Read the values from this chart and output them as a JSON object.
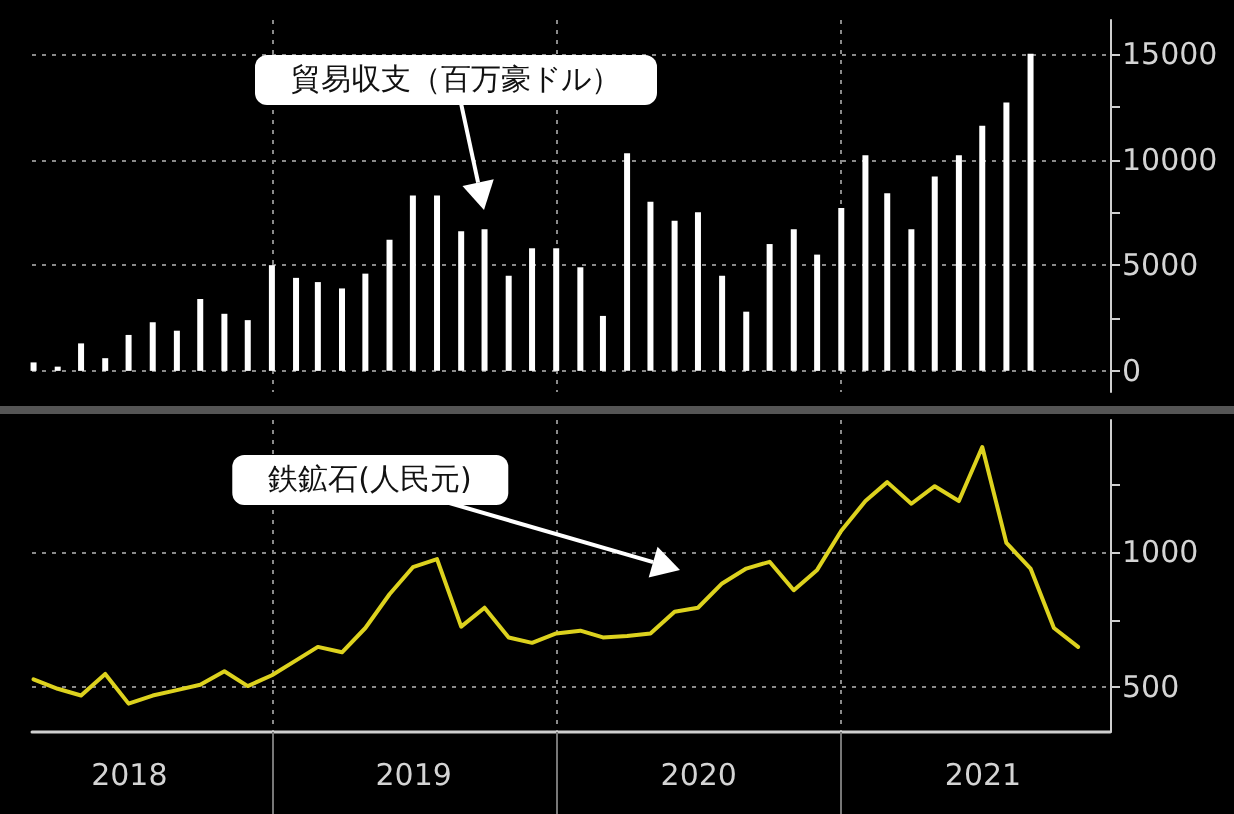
{
  "chart_data": [
    {
      "type": "bar",
      "x": [
        "2018-03",
        "2018-04",
        "2018-05",
        "2018-06",
        "2018-07",
        "2018-08",
        "2018-09",
        "2018-10",
        "2018-11",
        "2018-12",
        "2019-01",
        "2019-02",
        "2019-03",
        "2019-04",
        "2019-05",
        "2019-06",
        "2019-07",
        "2019-08",
        "2019-09",
        "2019-10",
        "2019-11",
        "2019-12",
        "2020-01",
        "2020-02",
        "2020-03",
        "2020-04",
        "2020-05",
        "2020-06",
        "2020-07",
        "2020-08",
        "2020-09",
        "2020-10",
        "2020-11",
        "2020-12",
        "2021-01",
        "2021-02",
        "2021-03",
        "2021-04",
        "2021-05",
        "2021-06",
        "2021-07",
        "2021-08",
        "2021-09"
      ],
      "values": [
        400,
        200,
        1300,
        600,
        1700,
        2300,
        1900,
        3400,
        2700,
        2400,
        5000,
        4400,
        4200,
        3900,
        4600,
        6200,
        8300,
        8300,
        6600,
        6700,
        4500,
        5800,
        5800,
        4900,
        2600,
        10300,
        8000,
        7100,
        7500,
        4500,
        2800,
        6000,
        6700,
        5500,
        7700,
        10200,
        8400,
        6700,
        9200,
        10200,
        11600,
        12700,
        15000
      ],
      "color": "#ffffff",
      "xlim": [
        "2018-02-27",
        "2021-12-12"
      ],
      "ylim": [
        -1000,
        16600
      ],
      "yticks": [
        0,
        {
          "value": 2500,
          "label": null
        },
        5000,
        {
          "value": 7500,
          "label": null
        },
        10000,
        {
          "value": 12500,
          "label": null
        },
        15000
      ],
      "xticks": [
        {
          "value": "2019-01-01",
          "label": null
        },
        {
          "value": "2020-01-01",
          "label": null
        },
        {
          "value": "2021-01-01",
          "label": null
        }
      ],
      "grid": true,
      "tick_labels": "y",
      "annotations": [
        "貿易収支（百万豪ドル）"
      ]
    },
    {
      "type": "line",
      "x": [
        "2018-03",
        "2018-04",
        "2018-05",
        "2018-06",
        "2018-07",
        "2018-08",
        "2018-09",
        "2018-10",
        "2018-11",
        "2018-12",
        "2019-01",
        "2019-02",
        "2019-03",
        "2019-04",
        "2019-05",
        "2019-06",
        "2019-07",
        "2019-08",
        "2019-09",
        "2019-10",
        "2019-11",
        "2019-12",
        "2020-01",
        "2020-02",
        "2020-03",
        "2020-04",
        "2020-05",
        "2020-06",
        "2020-07",
        "2020-08",
        "2020-09",
        "2020-10",
        "2020-11",
        "2020-12",
        "2021-01",
        "2021-02",
        "2021-03",
        "2021-04",
        "2021-05",
        "2021-06",
        "2021-07",
        "2021-08",
        "2021-09",
        "2021-10",
        "2021-11"
      ],
      "values": [
        530,
        495,
        470,
        550,
        440,
        470,
        490,
        510,
        560,
        505,
        545,
        600,
        650,
        630,
        720,
        845,
        945,
        975,
        725,
        795,
        685,
        665,
        700,
        710,
        685,
        690,
        700,
        780,
        795,
        885,
        940,
        965,
        860,
        935,
        1080,
        1190,
        1260,
        1180,
        1245,
        1190,
        1390,
        1035,
        940,
        720,
        650
      ],
      "color": "#ddd21e",
      "marker": "none",
      "line_style": "solid",
      "xlim": [
        "2018-02-27",
        "2021-12-12"
      ],
      "ylim": [
        335,
        1490
      ],
      "yticks": [
        500,
        {
          "value": 750,
          "label": null
        },
        1000,
        {
          "value": 1250,
          "label": null
        }
      ],
      "xticks": [
        {
          "value": "2019-01-01",
          "label": null
        },
        {
          "value": "2020-01-01",
          "label": null
        },
        {
          "value": "2021-01-01",
          "label": null
        },
        {
          "value": "2018-07-02",
          "label": "2018"
        },
        {
          "value": "2019-07-02",
          "label": "2019"
        },
        {
          "value": "2020-07-02",
          "label": "2020"
        },
        {
          "value": "2021-07-02",
          "label": "2021"
        }
      ],
      "grid": true,
      "annotations": [
        "鉄鉱石(人民元)"
      ]
    }
  ]
}
